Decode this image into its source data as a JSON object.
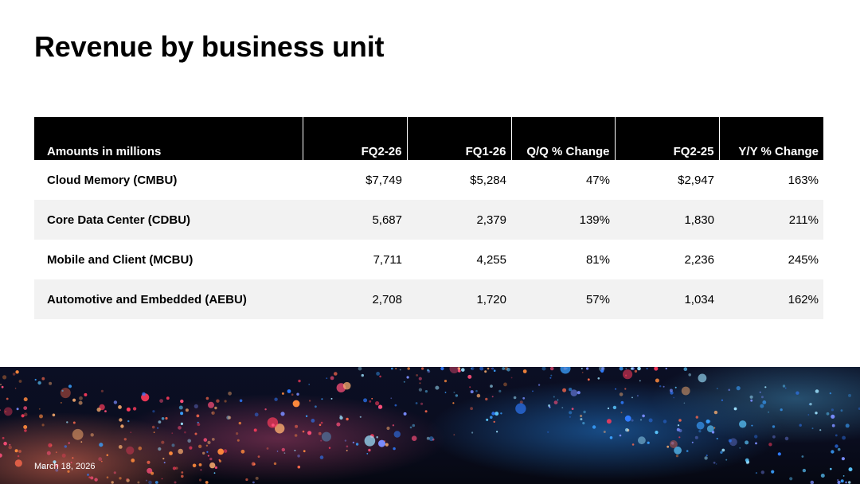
{
  "slide": {
    "title": "Revenue by business unit",
    "date": "March 18, 2026"
  },
  "table": {
    "headers": [
      "Amounts in millions",
      "FQ2-26",
      "FQ1-26",
      "Q/Q % Change",
      "FQ2-25",
      "Y/Y % Change"
    ],
    "rows": [
      [
        "Cloud Memory (CMBU)",
        "$7,749",
        "$5,284",
        "47%",
        "$2,947",
        "163%"
      ],
      [
        "Core Data Center (CDBU)",
        "5,687",
        "2,379",
        "139%",
        "1,830",
        "211%"
      ],
      [
        "Mobile and Client (MCBU)",
        "7,711",
        "4,255",
        "81%",
        "2,236",
        "245%"
      ],
      [
        "Automotive and Embedded (AEBU)",
        "2,708",
        "1,720",
        "57%",
        "1,034",
        "162%"
      ]
    ]
  },
  "colors": {
    "header_bg": "#000000",
    "row_shade": "#f2f2f2",
    "banner_dark": "#0a0d1f",
    "glow_warm": "#ff6a5a",
    "glow_cool": "#3aa0ff"
  }
}
